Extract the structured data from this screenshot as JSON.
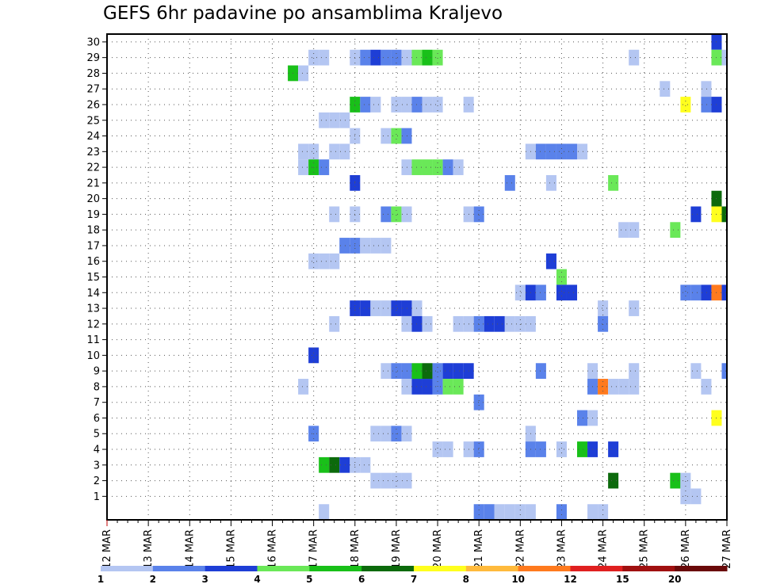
{
  "chart_data": {
    "type": "heatmap",
    "title": "GEFS 6hr padavine po ansamblima Kraljevo",
    "x_tick_labels": [
      "12 MAR",
      "13 MAR",
      "14 MAR",
      "15 MAR",
      "16 MAR",
      "17 MAR",
      "18 MAR",
      "19 MAR",
      "20 MAR",
      "21 MAR",
      "22 MAR",
      "23 MAR",
      "24 MAR",
      "25 MAR",
      "26 MAR",
      "27 MAR"
    ],
    "y_tick_labels": [
      "1",
      "2",
      "3",
      "4",
      "5",
      "6",
      "7",
      "8",
      "9",
      "10",
      "11",
      "12",
      "13",
      "14",
      "15",
      "16",
      "17",
      "18",
      "19",
      "20",
      "21",
      "22",
      "23",
      "24",
      "25",
      "26",
      "27",
      "28",
      "29",
      "30"
    ],
    "x_range": [
      "12 MAR",
      "27 MAR"
    ],
    "x_unit": "6h steps",
    "y_range": [
      0,
      30
    ],
    "grid": true,
    "legend": {
      "placement": "bottom",
      "labels": [
        "1",
        "2",
        "3",
        "4",
        "5",
        "6",
        "7",
        "8",
        "10",
        "12",
        "15",
        "20"
      ],
      "colors": [
        "#b4c6f2",
        "#5a82ea",
        "#1e3ed6",
        "#6ae858",
        "#19c019",
        "#0c6a0c",
        "#ffff1e",
        "#ffba3c",
        "#ff7a1e",
        "#e02020",
        "#a01010",
        "#6a0a0a"
      ]
    },
    "cells": [
      {
        "m": 30,
        "s": 59,
        "c": 2
      },
      {
        "m": 29,
        "s": 20,
        "c": 0
      },
      {
        "m": 29,
        "s": 21,
        "c": 0
      },
      {
        "m": 29,
        "s": 24,
        "c": 0
      },
      {
        "m": 29,
        "s": 25,
        "c": 1
      },
      {
        "m": 29,
        "s": 26,
        "c": 2
      },
      {
        "m": 29,
        "s": 27,
        "c": 1
      },
      {
        "m": 29,
        "s": 28,
        "c": 1
      },
      {
        "m": 29,
        "s": 29,
        "c": 0
      },
      {
        "m": 29,
        "s": 30,
        "c": 3
      },
      {
        "m": 29,
        "s": 31,
        "c": 4
      },
      {
        "m": 29,
        "s": 32,
        "c": 3
      },
      {
        "m": 29,
        "s": 51,
        "c": 0
      },
      {
        "m": 29,
        "s": 59,
        "c": 3
      },
      {
        "m": 29,
        "s": 60,
        "c": 0
      },
      {
        "m": 28,
        "s": 18,
        "c": 4
      },
      {
        "m": 28,
        "s": 19,
        "c": 0
      },
      {
        "m": 27,
        "s": 54,
        "c": 0
      },
      {
        "m": 27,
        "s": 58,
        "c": 0
      },
      {
        "m": 26,
        "s": 24,
        "c": 4
      },
      {
        "m": 26,
        "s": 25,
        "c": 1
      },
      {
        "m": 26,
        "s": 26,
        "c": 0
      },
      {
        "m": 26,
        "s": 28,
        "c": 0
      },
      {
        "m": 26,
        "s": 29,
        "c": 0
      },
      {
        "m": 26,
        "s": 30,
        "c": 1
      },
      {
        "m": 26,
        "s": 31,
        "c": 0
      },
      {
        "m": 26,
        "s": 32,
        "c": 0
      },
      {
        "m": 26,
        "s": 35,
        "c": 0
      },
      {
        "m": 26,
        "s": 56,
        "c": 6
      },
      {
        "m": 26,
        "s": 58,
        "c": 1
      },
      {
        "m": 26,
        "s": 59,
        "c": 2
      },
      {
        "m": 25,
        "s": 21,
        "c": 0
      },
      {
        "m": 25,
        "s": 22,
        "c": 0
      },
      {
        "m": 25,
        "s": 23,
        "c": 0
      },
      {
        "m": 24,
        "s": 24,
        "c": 0
      },
      {
        "m": 24,
        "s": 27,
        "c": 0
      },
      {
        "m": 24,
        "s": 28,
        "c": 3
      },
      {
        "m": 24,
        "s": 29,
        "c": 1
      },
      {
        "m": 23,
        "s": 19,
        "c": 0
      },
      {
        "m": 23,
        "s": 20,
        "c": 0
      },
      {
        "m": 23,
        "s": 22,
        "c": 0
      },
      {
        "m": 23,
        "s": 23,
        "c": 0
      },
      {
        "m": 23,
        "s": 41,
        "c": 0
      },
      {
        "m": 23,
        "s": 42,
        "c": 1
      },
      {
        "m": 23,
        "s": 43,
        "c": 1
      },
      {
        "m": 23,
        "s": 44,
        "c": 1
      },
      {
        "m": 23,
        "s": 45,
        "c": 1
      },
      {
        "m": 23,
        "s": 46,
        "c": 0
      },
      {
        "m": 22,
        "s": 19,
        "c": 0
      },
      {
        "m": 22,
        "s": 20,
        "c": 4
      },
      {
        "m": 22,
        "s": 21,
        "c": 1
      },
      {
        "m": 22,
        "s": 29,
        "c": 0
      },
      {
        "m": 22,
        "s": 30,
        "c": 3
      },
      {
        "m": 22,
        "s": 31,
        "c": 3
      },
      {
        "m": 22,
        "s": 32,
        "c": 3
      },
      {
        "m": 22,
        "s": 33,
        "c": 1
      },
      {
        "m": 22,
        "s": 34,
        "c": 0
      },
      {
        "m": 21,
        "s": 24,
        "c": 2
      },
      {
        "m": 21,
        "s": 39,
        "c": 1
      },
      {
        "m": 21,
        "s": 43,
        "c": 0
      },
      {
        "m": 21,
        "s": 49,
        "c": 3
      },
      {
        "m": 20,
        "s": 59,
        "c": 5
      },
      {
        "m": 19,
        "s": 22,
        "c": 0
      },
      {
        "m": 19,
        "s": 24,
        "c": 0
      },
      {
        "m": 19,
        "s": 27,
        "c": 1
      },
      {
        "m": 19,
        "s": 28,
        "c": 3
      },
      {
        "m": 19,
        "s": 29,
        "c": 0
      },
      {
        "m": 19,
        "s": 35,
        "c": 0
      },
      {
        "m": 19,
        "s": 36,
        "c": 1
      },
      {
        "m": 19,
        "s": 57,
        "c": 2
      },
      {
        "m": 19,
        "s": 59,
        "c": 6
      },
      {
        "m": 19,
        "s": 60,
        "c": 5
      },
      {
        "m": 18,
        "s": 50,
        "c": 0
      },
      {
        "m": 18,
        "s": 51,
        "c": 0
      },
      {
        "m": 18,
        "s": 55,
        "c": 3
      },
      {
        "m": 17,
        "s": 23,
        "c": 1
      },
      {
        "m": 17,
        "s": 24,
        "c": 1
      },
      {
        "m": 17,
        "s": 25,
        "c": 0
      },
      {
        "m": 17,
        "s": 26,
        "c": 0
      },
      {
        "m": 17,
        "s": 27,
        "c": 0
      },
      {
        "m": 16,
        "s": 20,
        "c": 0
      },
      {
        "m": 16,
        "s": 21,
        "c": 0
      },
      {
        "m": 16,
        "s": 22,
        "c": 0
      },
      {
        "m": 16,
        "s": 43,
        "c": 2
      },
      {
        "m": 15,
        "s": 44,
        "c": 3
      },
      {
        "m": 14,
        "s": 40,
        "c": 0
      },
      {
        "m": 14,
        "s": 41,
        "c": 2
      },
      {
        "m": 14,
        "s": 42,
        "c": 1
      },
      {
        "m": 14,
        "s": 44,
        "c": 2
      },
      {
        "m": 14,
        "s": 45,
        "c": 2
      },
      {
        "m": 14,
        "s": 56,
        "c": 1
      },
      {
        "m": 14,
        "s": 57,
        "c": 1
      },
      {
        "m": 14,
        "s": 58,
        "c": 2
      },
      {
        "m": 14,
        "s": 59,
        "c": 8
      },
      {
        "m": 14,
        "s": 60,
        "c": 2
      },
      {
        "m": 13,
        "s": 24,
        "c": 2
      },
      {
        "m": 13,
        "s": 25,
        "c": 2
      },
      {
        "m": 13,
        "s": 26,
        "c": 0
      },
      {
        "m": 13,
        "s": 27,
        "c": 0
      },
      {
        "m": 13,
        "s": 28,
        "c": 2
      },
      {
        "m": 13,
        "s": 29,
        "c": 2
      },
      {
        "m": 13,
        "s": 30,
        "c": 0
      },
      {
        "m": 13,
        "s": 48,
        "c": 0
      },
      {
        "m": 13,
        "s": 51,
        "c": 0
      },
      {
        "m": 12,
        "s": 22,
        "c": 0
      },
      {
        "m": 12,
        "s": 29,
        "c": 0
      },
      {
        "m": 12,
        "s": 30,
        "c": 2
      },
      {
        "m": 12,
        "s": 31,
        "c": 0
      },
      {
        "m": 12,
        "s": 34,
        "c": 0
      },
      {
        "m": 12,
        "s": 35,
        "c": 0
      },
      {
        "m": 12,
        "s": 36,
        "c": 1
      },
      {
        "m": 12,
        "s": 37,
        "c": 2
      },
      {
        "m": 12,
        "s": 38,
        "c": 2
      },
      {
        "m": 12,
        "s": 39,
        "c": 0
      },
      {
        "m": 12,
        "s": 40,
        "c": 0
      },
      {
        "m": 12,
        "s": 41,
        "c": 0
      },
      {
        "m": 12,
        "s": 48,
        "c": 1
      },
      {
        "m": 10,
        "s": 20,
        "c": 2
      },
      {
        "m": 9,
        "s": 27,
        "c": 0
      },
      {
        "m": 9,
        "s": 28,
        "c": 1
      },
      {
        "m": 9,
        "s": 29,
        "c": 1
      },
      {
        "m": 9,
        "s": 30,
        "c": 4
      },
      {
        "m": 9,
        "s": 31,
        "c": 5
      },
      {
        "m": 9,
        "s": 32,
        "c": 1
      },
      {
        "m": 9,
        "s": 33,
        "c": 2
      },
      {
        "m": 9,
        "s": 34,
        "c": 2
      },
      {
        "m": 9,
        "s": 35,
        "c": 2
      },
      {
        "m": 9,
        "s": 42,
        "c": 1
      },
      {
        "m": 9,
        "s": 47,
        "c": 0
      },
      {
        "m": 9,
        "s": 51,
        "c": 0
      },
      {
        "m": 9,
        "s": 57,
        "c": 0
      },
      {
        "m": 9,
        "s": 60,
        "c": 1
      },
      {
        "m": 8,
        "s": 19,
        "c": 0
      },
      {
        "m": 8,
        "s": 29,
        "c": 0
      },
      {
        "m": 8,
        "s": 30,
        "c": 2
      },
      {
        "m": 8,
        "s": 31,
        "c": 2
      },
      {
        "m": 8,
        "s": 32,
        "c": 1
      },
      {
        "m": 8,
        "s": 33,
        "c": 3
      },
      {
        "m": 8,
        "s": 34,
        "c": 3
      },
      {
        "m": 8,
        "s": 47,
        "c": 1
      },
      {
        "m": 8,
        "s": 48,
        "c": 8
      },
      {
        "m": 8,
        "s": 49,
        "c": 0
      },
      {
        "m": 8,
        "s": 50,
        "c": 0
      },
      {
        "m": 8,
        "s": 51,
        "c": 0
      },
      {
        "m": 8,
        "s": 58,
        "c": 0
      },
      {
        "m": 7,
        "s": 36,
        "c": 1
      },
      {
        "m": 6,
        "s": 46,
        "c": 1
      },
      {
        "m": 6,
        "s": 47,
        "c": 0
      },
      {
        "m": 6,
        "s": 59,
        "c": 6
      },
      {
        "m": 5,
        "s": 20,
        "c": 1
      },
      {
        "m": 5,
        "s": 26,
        "c": 0
      },
      {
        "m": 5,
        "s": 27,
        "c": 0
      },
      {
        "m": 5,
        "s": 28,
        "c": 1
      },
      {
        "m": 5,
        "s": 29,
        "c": 0
      },
      {
        "m": 5,
        "s": 41,
        "c": 0
      },
      {
        "m": 4,
        "s": 32,
        "c": 0
      },
      {
        "m": 4,
        "s": 33,
        "c": 0
      },
      {
        "m": 4,
        "s": 35,
        "c": 0
      },
      {
        "m": 4,
        "s": 36,
        "c": 1
      },
      {
        "m": 4,
        "s": 41,
        "c": 1
      },
      {
        "m": 4,
        "s": 42,
        "c": 1
      },
      {
        "m": 4,
        "s": 44,
        "c": 0
      },
      {
        "m": 4,
        "s": 46,
        "c": 4
      },
      {
        "m": 4,
        "s": 47,
        "c": 2
      },
      {
        "m": 4,
        "s": 49,
        "c": 2
      },
      {
        "m": 3,
        "s": 21,
        "c": 4
      },
      {
        "m": 3,
        "s": 22,
        "c": 5
      },
      {
        "m": 3,
        "s": 23,
        "c": 2
      },
      {
        "m": 3,
        "s": 24,
        "c": 0
      },
      {
        "m": 3,
        "s": 25,
        "c": 0
      },
      {
        "m": 2,
        "s": 26,
        "c": 0
      },
      {
        "m": 2,
        "s": 27,
        "c": 0
      },
      {
        "m": 2,
        "s": 28,
        "c": 0
      },
      {
        "m": 2,
        "s": 29,
        "c": 0
      },
      {
        "m": 2,
        "s": 49,
        "c": 5
      },
      {
        "m": 2,
        "s": 55,
        "c": 4
      },
      {
        "m": 2,
        "s": 56,
        "c": 0
      },
      {
        "m": 1,
        "s": 56,
        "c": 0
      },
      {
        "m": 1,
        "s": 57,
        "c": 0
      },
      {
        "m": 0,
        "s": 21,
        "c": 0
      },
      {
        "m": 0,
        "s": 36,
        "c": 1
      },
      {
        "m": 0,
        "s": 37,
        "c": 1
      },
      {
        "m": 0,
        "s": 38,
        "c": 0
      },
      {
        "m": 0,
        "s": 39,
        "c": 0
      },
      {
        "m": 0,
        "s": 40,
        "c": 0
      },
      {
        "m": 0,
        "s": 41,
        "c": 0
      },
      {
        "m": 0,
        "s": 44,
        "c": 1
      },
      {
        "m": 0,
        "s": 47,
        "c": 0
      },
      {
        "m": 0,
        "s": 48,
        "c": 0
      }
    ]
  }
}
